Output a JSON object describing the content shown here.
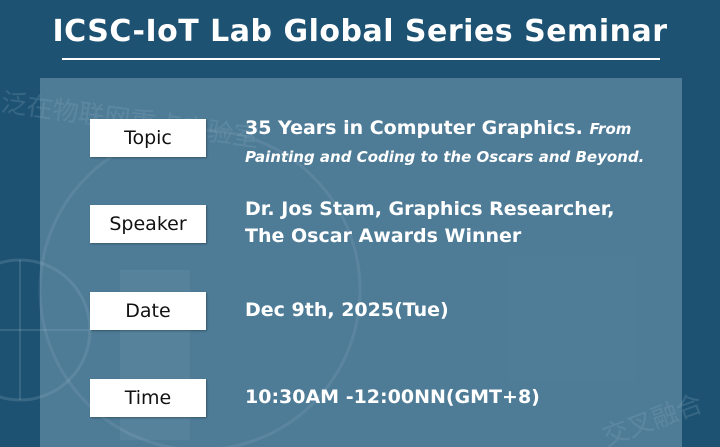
{
  "title": "ICSC-IoT Lab Global Series Seminar",
  "watermark": [
    "泛在物联网重点实验室",
    "交叉融合"
  ],
  "rows": [
    {
      "label": "Topic",
      "lines": [
        "35 Years in Computer Graphics."
      ],
      "italic": "From Painting and Coding to the Oscars and Beyond."
    },
    {
      "label": "Speaker",
      "lines": [
        "Dr. Jos Stam, Graphics Researcher,",
        "The Oscar Awards Winner"
      ]
    },
    {
      "label": "Date",
      "lines": [
        "Dec 9th, 2025(Tue)"
      ]
    },
    {
      "label": "Time",
      "lines": [
        "10:30AM -12:00NN(GMT+8)"
      ]
    }
  ]
}
